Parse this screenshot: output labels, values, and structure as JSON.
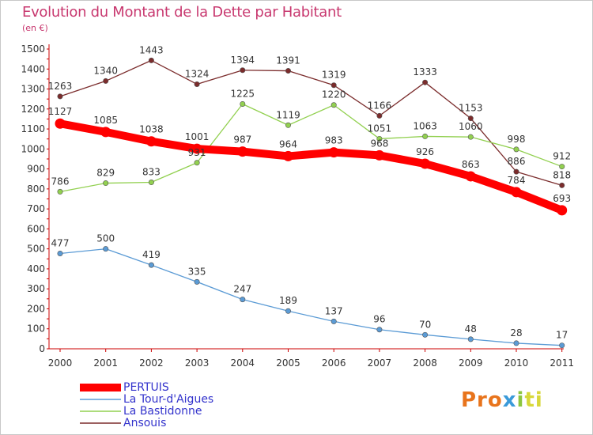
{
  "chart_data": {
    "type": "line",
    "title": "Evolution du Montant de la Dette par Habitant",
    "subtitle": "(en €)",
    "x": [
      "2000",
      "2001",
      "2002",
      "2003",
      "2004",
      "2005",
      "2006",
      "2007",
      "2008",
      "2009",
      "2010",
      "2011"
    ],
    "ylim": [
      0,
      1500
    ],
    "yticks": [
      0,
      100,
      200,
      300,
      400,
      500,
      600,
      700,
      800,
      900,
      1000,
      1100,
      1200,
      1300,
      1400,
      1500
    ],
    "grid": false,
    "legend_position": "bottom-left",
    "series": [
      {
        "name": "PERTUIS",
        "color": "#ff0000",
        "values": [
          1127,
          1085,
          1038,
          1001,
          987,
          964,
          983,
          968,
          926,
          863,
          784,
          693
        ],
        "labels": [
          "1127",
          "1085",
          "1038",
          "1001",
          "987",
          "964",
          "983",
          "968",
          "926",
          "863",
          "784",
          "693"
        ]
      },
      {
        "name": "La Tour-d'Aigues",
        "color": "#5b9bd5",
        "values": [
          477,
          500,
          419,
          335,
          247,
          189,
          137,
          96,
          70,
          48,
          28,
          17
        ],
        "labels": [
          "477",
          "500",
          "419",
          "335",
          "247",
          "189",
          "137",
          "96",
          "70",
          "48",
          "28",
          "17"
        ]
      },
      {
        "name": "La Bastidonne",
        "color": "#92d050",
        "values": [
          786,
          829,
          833,
          931,
          1225,
          1119,
          1220,
          1051,
          1063,
          1060,
          998,
          912
        ],
        "labels": [
          "786",
          "829",
          "833",
          "931",
          "1225",
          "1119",
          "1220",
          "1051",
          "1063",
          "1060",
          "998",
          "912"
        ]
      },
      {
        "name": "Ansouis",
        "color": "#7b2c2c",
        "values": [
          1263,
          1340,
          1443,
          1324,
          1394,
          1391,
          1319,
          1166,
          1333,
          1153,
          886,
          818
        ],
        "labels": [
          "1263",
          "1340",
          "1443",
          "1324",
          "1394",
          "1391",
          "1319",
          "1166",
          "1333",
          "1153",
          "886",
          "818"
        ]
      }
    ]
  },
  "logo": {
    "p1": "Pro",
    "p2": "x",
    "p3": "i",
    "p4": "ti"
  }
}
